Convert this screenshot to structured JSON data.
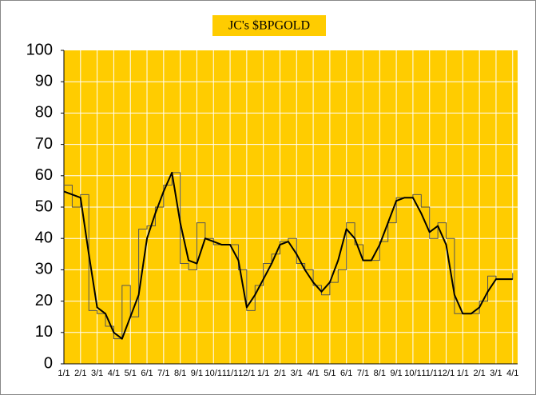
{
  "chart_data": {
    "type": "line",
    "title": "JC's $BPGOLD",
    "x": [
      0,
      0.5,
      1,
      1.5,
      2,
      2.5,
      3,
      3.5,
      4,
      4.5,
      5,
      5.5,
      6,
      6.5,
      7,
      7.5,
      8,
      8.5,
      9,
      9.5,
      10,
      10.5,
      11,
      11.5,
      12,
      12.5,
      13,
      13.5,
      14,
      14.5,
      15,
      15.5,
      16,
      16.5,
      17,
      17.5,
      18,
      18.5,
      19,
      19.5,
      20,
      20.5,
      21,
      21.5,
      22,
      22.5,
      23,
      23.5,
      24,
      24.5,
      25,
      25.5,
      26,
      26.5,
      27
    ],
    "series": [
      {
        "color": "#555555",
        "drawstyle": "steps-post",
        "width": 1,
        "values": [
          57,
          50,
          54,
          17,
          16,
          12,
          8,
          25,
          15,
          43,
          44,
          50,
          57,
          61,
          32,
          30,
          45,
          40,
          38,
          38,
          38,
          30,
          17,
          25,
          32,
          35,
          39,
          40,
          32,
          30,
          25,
          22,
          26,
          30,
          45,
          38,
          33,
          33,
          39,
          45,
          53,
          53,
          54,
          50,
          40,
          45,
          40,
          16,
          16,
          16,
          20,
          28,
          27,
          27,
          29
        ]
      },
      {
        "color": "#000000",
        "drawstyle": "line",
        "width": 2,
        "values": [
          55,
          54,
          53,
          35,
          18,
          16,
          10,
          8,
          15,
          22,
          40,
          48,
          55,
          61,
          45,
          33,
          32,
          40,
          39,
          38,
          38,
          33,
          18,
          22,
          27,
          32,
          38,
          39,
          35,
          30,
          26,
          23,
          26,
          33,
          43,
          40,
          33,
          33,
          38,
          45,
          52,
          53,
          53,
          48,
          42,
          44,
          38,
          22,
          16,
          16,
          18,
          23,
          27,
          27,
          27
        ]
      }
    ],
    "xlim": [
      0,
      27.3
    ],
    "xticks": [
      {
        "value": 0,
        "label": "1/1"
      },
      {
        "value": 1,
        "label": "2/1"
      },
      {
        "value": 2,
        "label": "3/1"
      },
      {
        "value": 3,
        "label": "4/1"
      },
      {
        "value": 4,
        "label": "5/1"
      },
      {
        "value": 5,
        "label": "6/1"
      },
      {
        "value": 6,
        "label": "7/1"
      },
      {
        "value": 7,
        "label": "8/1"
      },
      {
        "value": 8,
        "label": "9/1"
      },
      {
        "value": 9,
        "label": "10/1"
      },
      {
        "value": 10,
        "label": "11/1"
      },
      {
        "value": 11,
        "label": "12/1"
      },
      {
        "value": 12,
        "label": "1/1"
      },
      {
        "value": 13,
        "label": "2/1"
      },
      {
        "value": 14,
        "label": "3/1"
      },
      {
        "value": 15,
        "label": "4/1"
      },
      {
        "value": 16,
        "label": "5/1"
      },
      {
        "value": 17,
        "label": "6/1"
      },
      {
        "value": 18,
        "label": "7/1"
      },
      {
        "value": 19,
        "label": "8/1"
      },
      {
        "value": 20,
        "label": "9/1"
      },
      {
        "value": 21,
        "label": "10/1"
      },
      {
        "value": 22,
        "label": "11/1"
      },
      {
        "value": 23,
        "label": "12/1"
      },
      {
        "value": 24,
        "label": "1/1"
      },
      {
        "value": 25,
        "label": "2/1"
      },
      {
        "value": 26,
        "label": "3/1"
      },
      {
        "value": 27,
        "label": "4/1"
      }
    ],
    "ylim": [
      0,
      100
    ],
    "yticks": [
      0,
      10,
      20,
      30,
      40,
      50,
      60,
      70,
      80,
      90,
      100
    ],
    "grid": true,
    "plot_background": "#ffcc00",
    "grid_color": "#ffffff"
  }
}
